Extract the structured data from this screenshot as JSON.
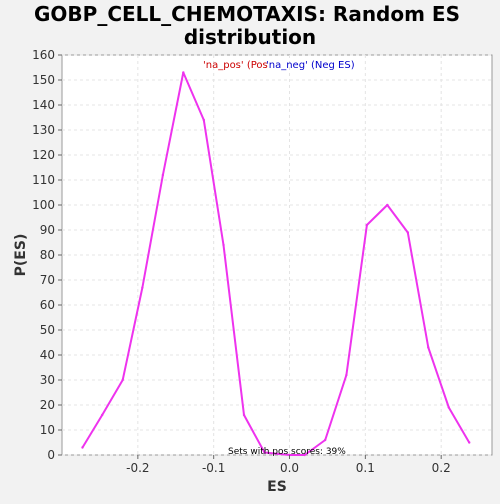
{
  "chart_data": {
    "type": "line",
    "title_lines": [
      "GOBP_CELL_CHEMOTAXIS: Random ES",
      "distribution"
    ],
    "xlabel": "ES",
    "ylabel": "P(ES)",
    "xlim": [
      -0.3,
      0.267
    ],
    "ylim": [
      0,
      160
    ],
    "x_ticks": [
      -0.2,
      -0.1,
      0.0,
      0.1,
      0.2
    ],
    "x_tick_labels": [
      "-0.2",
      "-0.1",
      "0.0",
      "0.1",
      "0.2"
    ],
    "y_ticks": [
      0,
      10,
      20,
      30,
      40,
      50,
      60,
      70,
      80,
      90,
      100,
      110,
      120,
      130,
      140,
      150,
      160
    ],
    "y_tick_labels": [
      "0",
      "10",
      "20",
      "30",
      "40",
      "50",
      "60",
      "70",
      "80",
      "90",
      "100",
      "110",
      "120",
      "130",
      "140",
      "150",
      "160"
    ],
    "grid": true,
    "legend": {
      "pos_label": "'na_pos' (Pos",
      "neg_label": "'na_neg' (Neg ES)",
      "pos_color": "#cc0000",
      "neg_color": "#0000cc"
    },
    "annotation": "Sets with pos scores: 39%",
    "series": [
      {
        "color": "#ee33ee",
        "x": [
          -0.273,
          -0.247,
          -0.22,
          -0.194,
          -0.167,
          -0.14,
          -0.113,
          -0.087,
          -0.06,
          -0.033,
          0.0,
          0.02,
          0.047,
          0.075,
          0.102,
          0.129,
          0.156,
          0.183,
          0.21,
          0.237
        ],
        "y": [
          3,
          16,
          30,
          67,
          112,
          153,
          134,
          84,
          16,
          1,
          0,
          0,
          6,
          32,
          92,
          100,
          89,
          43,
          19,
          5
        ]
      }
    ]
  }
}
